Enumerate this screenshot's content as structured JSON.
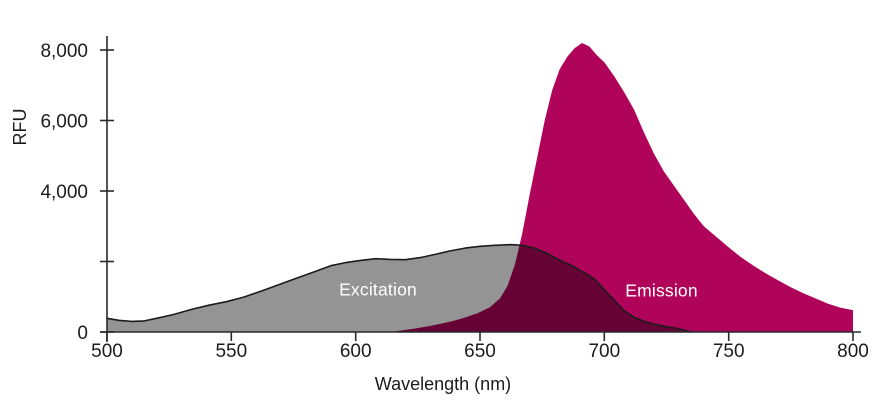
{
  "chart_data": {
    "type": "area",
    "title": "",
    "xlabel": "Wavelength (nm)",
    "ylabel": "RFU",
    "xlim": [
      500,
      800
    ],
    "ylim": [
      0,
      8000
    ],
    "xticks": [
      500,
      550,
      600,
      650,
      700,
      750,
      800
    ],
    "yticks": [
      0,
      2000,
      4000,
      6000,
      8000
    ],
    "ytick_labels": [
      "0",
      "",
      "4,000",
      "6,000",
      "8,000"
    ],
    "grid": false,
    "legend": "none",
    "colors": {
      "background": "#ffffff",
      "excitation_fill": "#949494",
      "emission_fill": "#AF0459",
      "excitation_outline": "#1C1C1C",
      "overlap_blend": "multiply",
      "axis": "#2a2a2a",
      "tick_text": "#1c1c1c",
      "annotation_text": "#ffffff"
    },
    "series": [
      {
        "name": "Excitation",
        "color": "#949494",
        "outline": "#1C1C1C",
        "blend": null,
        "points": [
          [
            500,
            390
          ],
          [
            505,
            330
          ],
          [
            510,
            300
          ],
          [
            515,
            315
          ],
          [
            520,
            390
          ],
          [
            527,
            500
          ],
          [
            534,
            640
          ],
          [
            541,
            760
          ],
          [
            548,
            860
          ],
          [
            555,
            990
          ],
          [
            562,
            1160
          ],
          [
            569,
            1340
          ],
          [
            576,
            1520
          ],
          [
            583,
            1700
          ],
          [
            590,
            1880
          ],
          [
            596,
            1970
          ],
          [
            602,
            2030
          ],
          [
            608,
            2080
          ],
          [
            614,
            2060
          ],
          [
            620,
            2050
          ],
          [
            626,
            2110
          ],
          [
            632,
            2200
          ],
          [
            638,
            2300
          ],
          [
            644,
            2380
          ],
          [
            650,
            2430
          ],
          [
            656,
            2460
          ],
          [
            662,
            2480
          ],
          [
            667,
            2460
          ],
          [
            672,
            2380
          ],
          [
            677,
            2230
          ],
          [
            682,
            2040
          ],
          [
            687,
            1880
          ],
          [
            692,
            1680
          ],
          [
            696,
            1500
          ],
          [
            700,
            1200
          ],
          [
            704,
            900
          ],
          [
            708,
            600
          ],
          [
            712,
            420
          ],
          [
            716,
            300
          ],
          [
            720,
            220
          ],
          [
            725,
            150
          ],
          [
            730,
            90
          ],
          [
            735,
            0
          ]
        ]
      },
      {
        "name": "Emission",
        "color": "#AF0459",
        "outline": null,
        "blend": "multiply",
        "points": [
          [
            614,
            0
          ],
          [
            619,
            50
          ],
          [
            624,
            100
          ],
          [
            629,
            160
          ],
          [
            634,
            230
          ],
          [
            639,
            310
          ],
          [
            644,
            410
          ],
          [
            649,
            530
          ],
          [
            654,
            700
          ],
          [
            658,
            950
          ],
          [
            661,
            1300
          ],
          [
            664,
            1900
          ],
          [
            667,
            2800
          ],
          [
            670,
            3900
          ],
          [
            673,
            4950
          ],
          [
            676,
            6000
          ],
          [
            679,
            6850
          ],
          [
            682,
            7450
          ],
          [
            685,
            7800
          ],
          [
            688,
            8050
          ],
          [
            691,
            8200
          ],
          [
            694,
            8100
          ],
          [
            697,
            7850
          ],
          [
            700,
            7650
          ],
          [
            704,
            7250
          ],
          [
            708,
            6800
          ],
          [
            712,
            6300
          ],
          [
            716,
            5650
          ],
          [
            720,
            5050
          ],
          [
            724,
            4550
          ],
          [
            728,
            4150
          ],
          [
            732,
            3750
          ],
          [
            736,
            3350
          ],
          [
            740,
            3000
          ],
          [
            745,
            2700
          ],
          [
            750,
            2400
          ],
          [
            755,
            2120
          ],
          [
            760,
            1880
          ],
          [
            765,
            1660
          ],
          [
            770,
            1460
          ],
          [
            775,
            1270
          ],
          [
            780,
            1100
          ],
          [
            785,
            950
          ],
          [
            790,
            800
          ],
          [
            795,
            690
          ],
          [
            800,
            620
          ]
        ]
      }
    ],
    "annotations": [
      {
        "id": "excitation-label",
        "text": "Excitation",
        "nm": 609,
        "rfu": 1200
      },
      {
        "id": "emission-label",
        "text": "Emission",
        "nm": 723,
        "rfu": 1180
      }
    ]
  }
}
